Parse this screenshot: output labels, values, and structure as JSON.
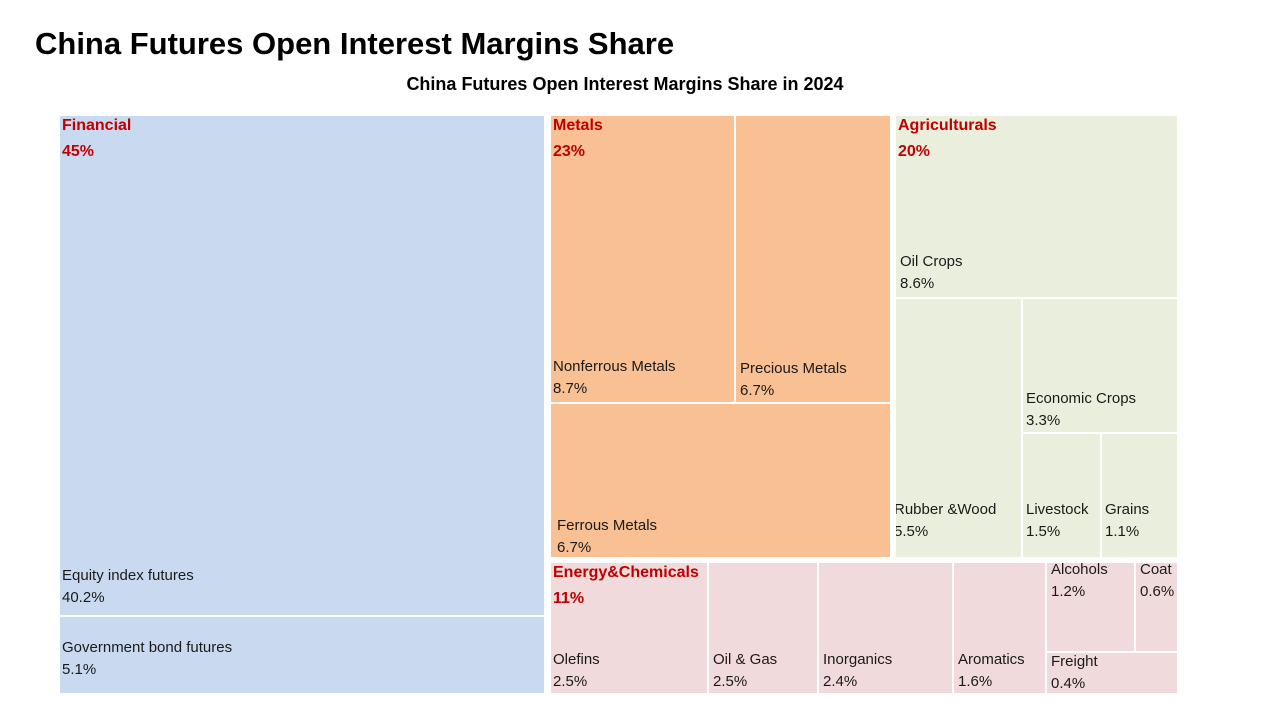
{
  "page": {
    "title": "China Futures Open Interest Margins Share"
  },
  "chart_data": {
    "type": "treemap",
    "title": "China Futures Open Interest Margins Share in 2024",
    "unit": "%",
    "groups": [
      {
        "name": "Financial",
        "value_label": "45%",
        "color": "#c9daf0",
        "label_color": "#c00000",
        "children": [
          {
            "name": "Equity index futures",
            "value": 40.2,
            "value_label": "40.2%"
          },
          {
            "name": "Government bond futures",
            "value": 5.1,
            "value_label": "5.1%"
          }
        ]
      },
      {
        "name": "Metals",
        "value_label": "23%",
        "color": "#f8c093",
        "label_color": "#c00000",
        "children": [
          {
            "name": "Nonferrous Metals",
            "value": 8.7,
            "value_label": "8.7%"
          },
          {
            "name": "Precious Metals",
            "value": 6.7,
            "value_label": "6.7%"
          },
          {
            "name": "Ferrous Metals",
            "value": 6.7,
            "value_label": "6.7%"
          }
        ]
      },
      {
        "name": "Agriculturals",
        "value_label": "20%",
        "color": "#eaefdd",
        "label_color": "#c00000",
        "children": [
          {
            "name": "Oil Crops",
            "value": 8.6,
            "value_label": "8.6%"
          },
          {
            "name": "Rubber &Wood",
            "value": 5.5,
            "value_label": "5.5%"
          },
          {
            "name": "Economic Crops",
            "value": 3.3,
            "value_label": "3.3%"
          },
          {
            "name": "Livestock",
            "value": 1.5,
            "value_label": "1.5%"
          },
          {
            "name": "Grains",
            "value": 1.1,
            "value_label": "1.1%"
          }
        ]
      },
      {
        "name": "Energy&Chemicals",
        "value_label": "11%",
        "color": "#f1dadb",
        "label_color": "#c00000",
        "children": [
          {
            "name": "Olefins",
            "value": 2.5,
            "value_label": "2.5%"
          },
          {
            "name": "Oil & Gas",
            "value": 2.5,
            "value_label": "2.5%"
          },
          {
            "name": "Inorganics",
            "value": 2.4,
            "value_label": "2.4%"
          },
          {
            "name": "Aromatics",
            "value": 1.6,
            "value_label": "1.6%"
          },
          {
            "name": "Alcohols",
            "value": 1.2,
            "value_label": "1.2%"
          },
          {
            "name": "Coat",
            "value": 0.6,
            "value_label": "0.6%"
          },
          {
            "name": "Freight",
            "value": 0.4,
            "value_label": "0.4%"
          }
        ]
      }
    ]
  }
}
